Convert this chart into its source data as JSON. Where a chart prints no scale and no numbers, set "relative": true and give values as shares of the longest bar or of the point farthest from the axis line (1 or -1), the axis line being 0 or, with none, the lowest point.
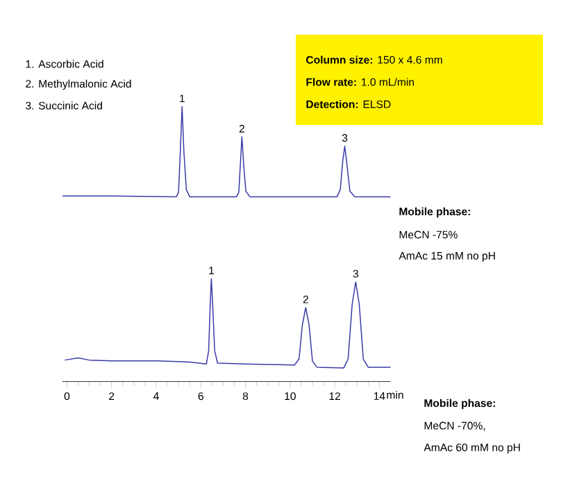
{
  "chart_data": {
    "type": "line",
    "relative": true,
    "xlim": [
      -0.2,
      14.5
    ],
    "xticks": [
      0,
      2,
      4,
      6,
      8,
      10,
      12,
      14
    ],
    "xlabel": "min",
    "grid": false,
    "marker": "none",
    "line_style": "solid",
    "series": [
      {
        "color": "#3a3aa8",
        "x": [
          -0.2,
          2,
          4.9,
          5.0,
          5.08,
          5.16,
          5.24,
          5.35,
          5.5,
          7.6,
          7.7,
          7.78,
          7.84,
          7.92,
          8.02,
          8.2,
          12.1,
          12.25,
          12.36,
          12.45,
          12.55,
          12.68,
          12.9,
          14.5
        ],
        "values": [
          0.675,
          0.675,
          0.672,
          0.688,
          0.836,
          1.0,
          0.836,
          0.698,
          0.672,
          0.672,
          0.688,
          0.803,
          0.89,
          0.787,
          0.692,
          0.672,
          0.672,
          0.698,
          0.803,
          0.856,
          0.787,
          0.692,
          0.672,
          0.672
        ]
      },
      {
        "color": "#3a3aa8",
        "x": [
          -0.1,
          0.5,
          1,
          2,
          4,
          5.5,
          6.25,
          6.35,
          6.42,
          6.47,
          6.53,
          6.62,
          6.75,
          8,
          10.2,
          10.4,
          10.55,
          10.7,
          10.85,
          11.0,
          11.2,
          12.4,
          12.6,
          12.78,
          12.94,
          13.1,
          13.28,
          13.5,
          14.5
        ],
        "values": [
          0.078,
          0.086,
          0.078,
          0.075,
          0.075,
          0.071,
          0.064,
          0.112,
          0.28,
          0.374,
          0.28,
          0.112,
          0.067,
          0.064,
          0.06,
          0.082,
          0.206,
          0.269,
          0.206,
          0.075,
          0.052,
          0.049,
          0.082,
          0.28,
          0.362,
          0.28,
          0.082,
          0.052,
          0.052
        ]
      }
    ],
    "annotations": [
      {
        "text": "1",
        "x": 5.16,
        "y": 1.0
      },
      {
        "text": "2",
        "x": 7.84,
        "y": 0.89
      },
      {
        "text": "3",
        "x": 12.45,
        "y": 0.856
      },
      {
        "text": "1",
        "x": 6.47,
        "y": 0.374
      },
      {
        "text": "2",
        "x": 10.7,
        "y": 0.269
      },
      {
        "text": "3",
        "x": 12.94,
        "y": 0.362
      },
      "1.   Ascorbic Acid",
      "2.   Methylmalonic Acid",
      "3.   Succinic Acid",
      "**Column size:** 150 x 4.6 mm",
      "**Flow rate:**   1.0 mL/min",
      "**Detection:**   ELSD",
      "**Mobile phase:**",
      "MeCN -75%",
      "AmAc 15 mM  no pH",
      "**Mobile phase:**",
      "MeCN -70%,",
      "AmAc 60 mM  no pH"
    ]
  }
}
